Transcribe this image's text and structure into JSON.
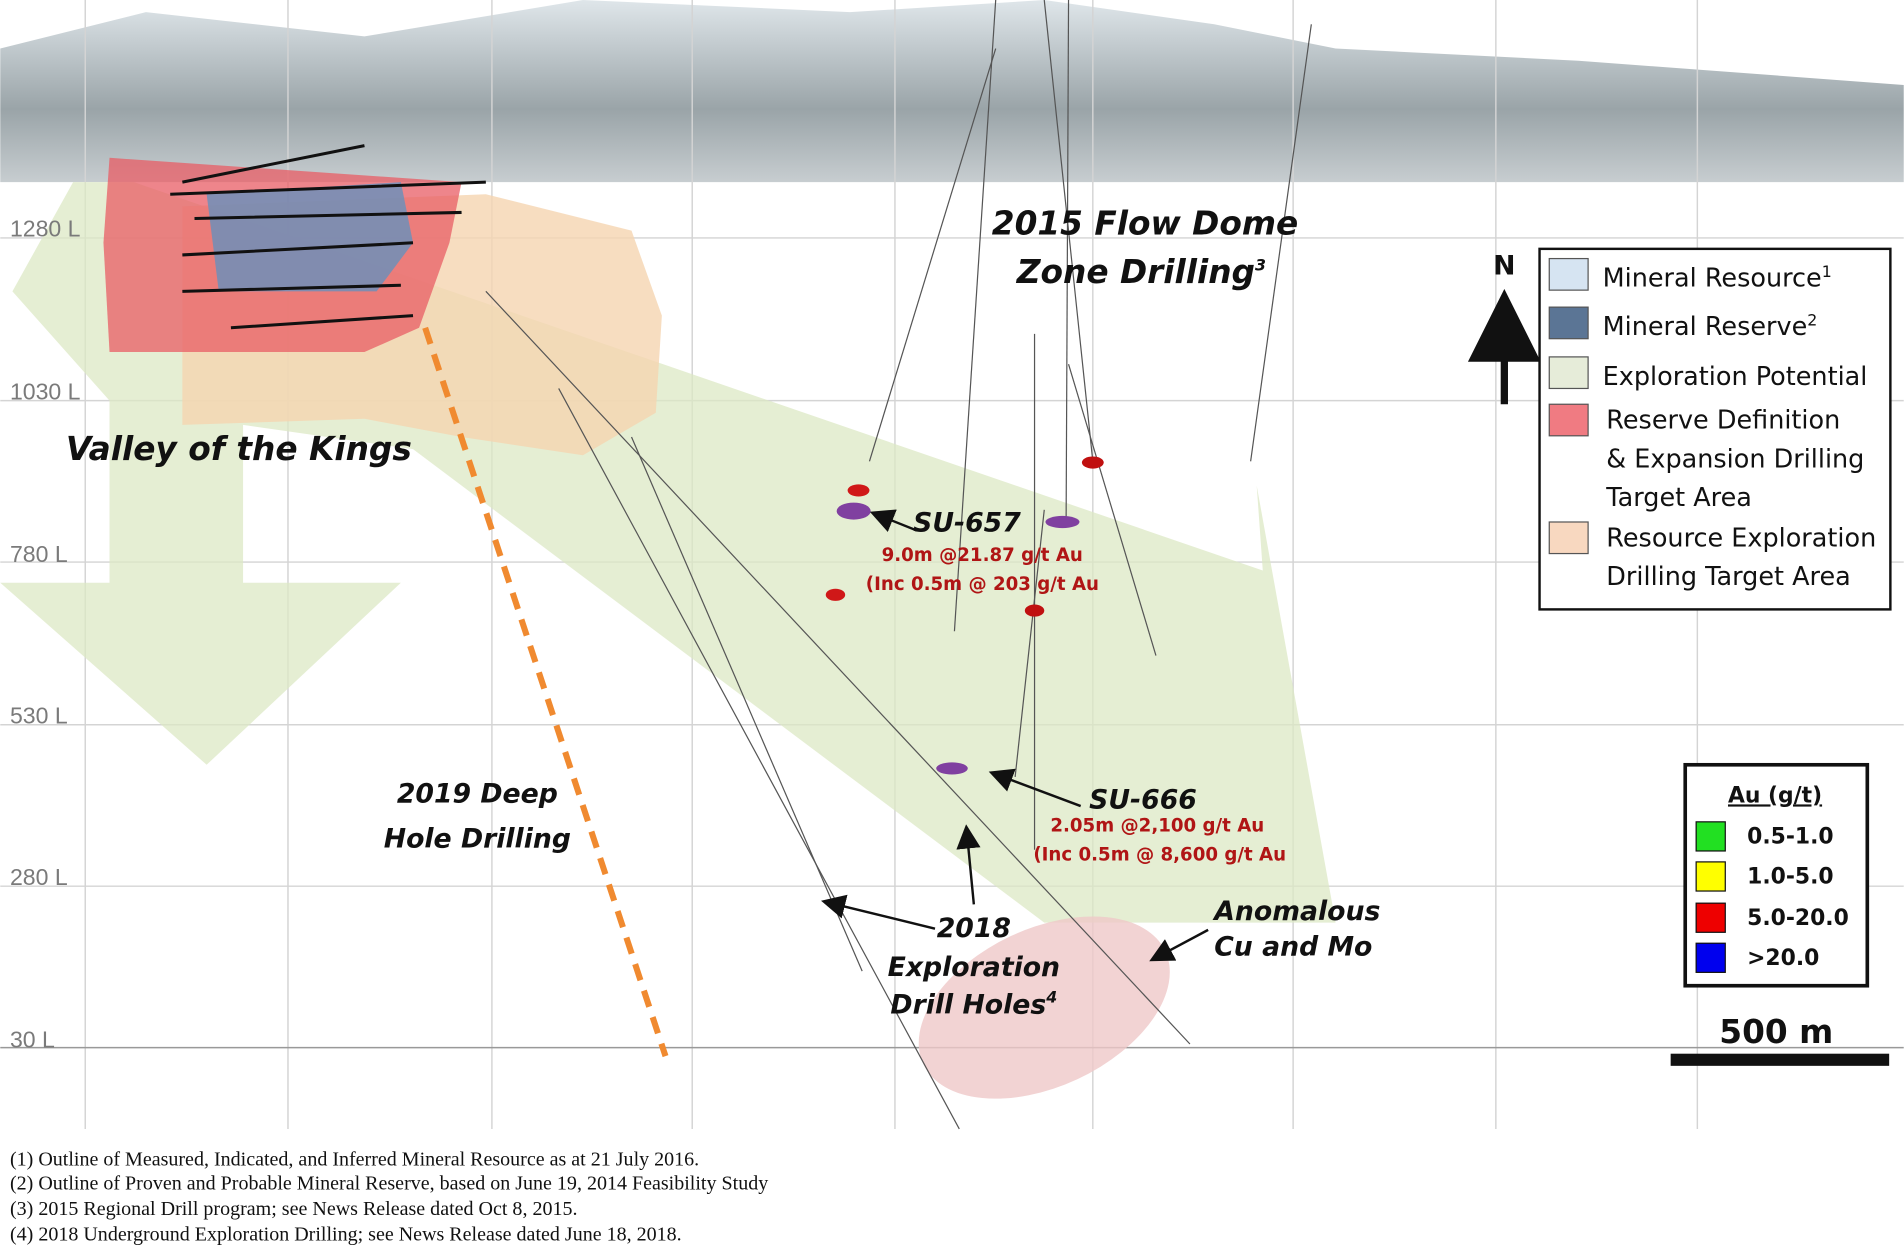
{
  "levels": [
    "1280 L",
    "1030 L",
    "780 L",
    "530 L",
    "280 L",
    "30 L"
  ],
  "labels": {
    "flow_dome": {
      "lines": [
        "2015 Flow Dome",
        "Zone Drilling"
      ],
      "note": "3"
    },
    "valley": "Valley of the Kings",
    "su657": {
      "name": "SU-657",
      "lines": [
        "9.0m @21.87 g/t Au",
        "(Inc 0.5m @ 203 g/t Au"
      ]
    },
    "su666": {
      "name": "SU-666",
      "lines": [
        "2.05m @2,100 g/t Au",
        "(Inc 0.5m @ 8,600 g/t Au"
      ]
    },
    "deep_hole": [
      "2019 Deep",
      "Hole Drilling"
    ],
    "exploration_2018": {
      "lines": [
        "2018",
        "Exploration",
        "Drill Holes"
      ],
      "note": "4"
    },
    "anomalous": [
      "Anomalous",
      "Cu and Mo"
    ]
  },
  "north": "N",
  "legend": [
    {
      "lines": [
        "Mineral Resource"
      ],
      "note": "1"
    },
    {
      "lines": [
        "Mineral Reserve"
      ],
      "note": "2"
    },
    {
      "lines": [
        "Exploration Potential"
      ]
    },
    {
      "lines": [
        "Reserve Definition",
        "& Expansion Drilling",
        "Target Area"
      ]
    },
    {
      "lines": [
        "Resource Exploration",
        "Drilling Target Area"
      ]
    }
  ],
  "au_legend": {
    "title": "Au (g/t)",
    "items": [
      "0.5-1.0",
      "1.0-5.0",
      "5.0-20.0",
      ">20.0"
    ]
  },
  "scale_bar": "500 m",
  "footnotes": [
    "(1) Outline of Measured, Indicated, and Inferred Mineral Resource as at 21 July 2016.",
    "(2) Outline of Proven and Probable Mineral Reserve, based on June 19, 2014 Feasibility Study",
    "(3) 2015 Regional Drill program; see News Release dated Oct 8, 2015.",
    "(4) 2018 Underground Exploration Drilling; see News Release dated June 18, 2018."
  ]
}
